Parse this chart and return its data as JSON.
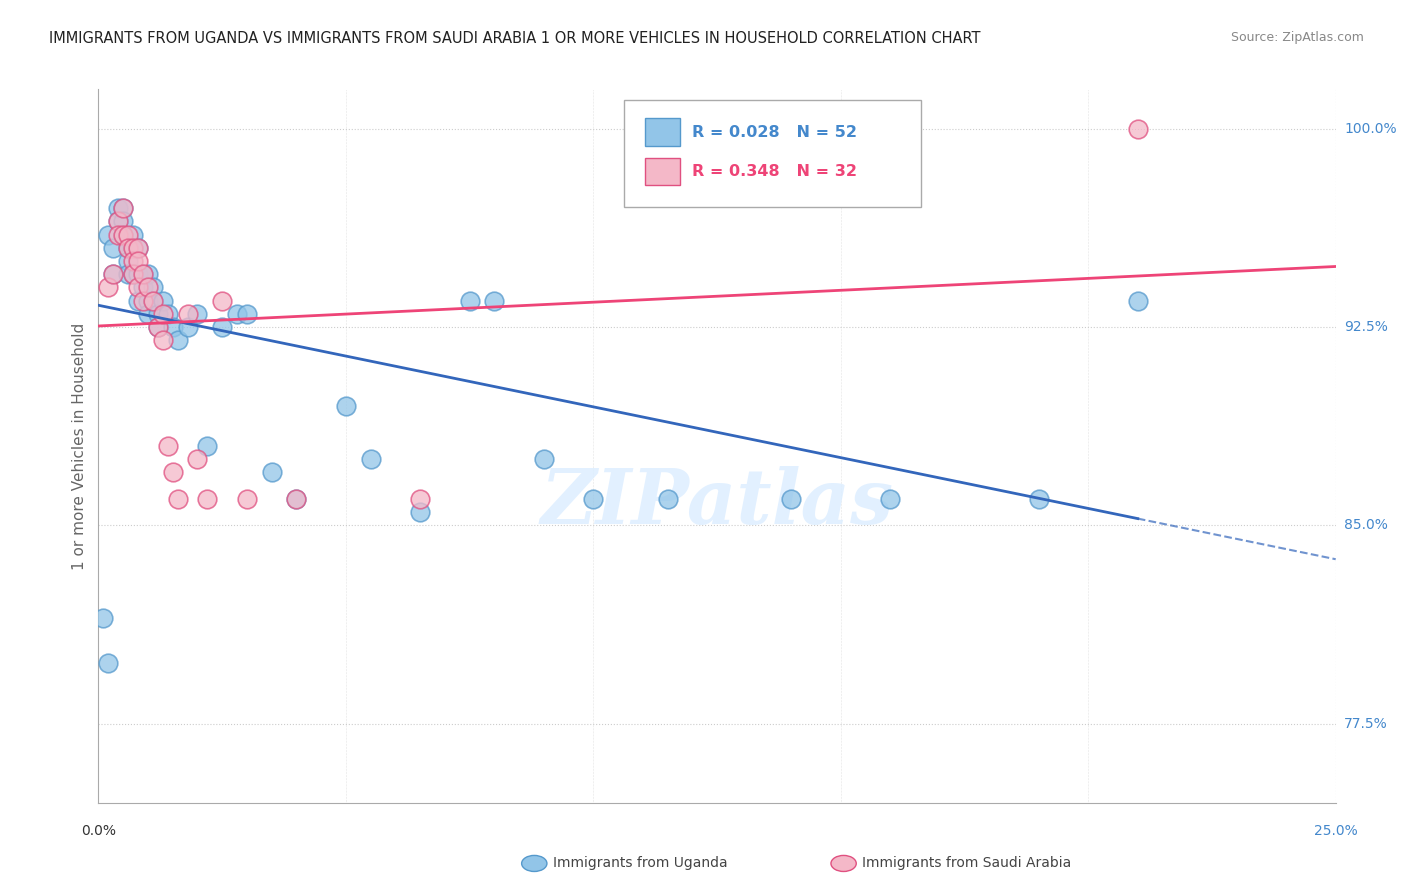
{
  "title": "IMMIGRANTS FROM UGANDA VS IMMIGRANTS FROM SAUDI ARABIA 1 OR MORE VEHICLES IN HOUSEHOLD CORRELATION CHART",
  "source": "Source: ZipAtlas.com",
  "ylabel_label": "1 or more Vehicles in Household",
  "legend_label_blue": "Immigrants from Uganda",
  "legend_label_pink": "Immigrants from Saudi Arabia",
  "R_blue": "R = 0.028",
  "N_blue": "N = 52",
  "R_pink": "R = 0.348",
  "N_pink": "N = 32",
  "xmin": 0.0,
  "xmax": 0.25,
  "ymin": 0.745,
  "ymax": 1.015,
  "yticks": [
    0.775,
    0.85,
    0.925,
    1.0
  ],
  "ytick_labels": [
    "77.5%",
    "85.0%",
    "92.5%",
    "100.0%"
  ],
  "blue_color": "#92c5e8",
  "pink_color": "#f4b8c8",
  "blue_edge_color": "#5599cc",
  "pink_edge_color": "#e05080",
  "blue_line_color": "#3366bb",
  "pink_line_color": "#ee4477",
  "grid_color": "#cccccc",
  "blue_scatter_x": [
    0.001,
    0.002,
    0.002,
    0.003,
    0.003,
    0.004,
    0.004,
    0.005,
    0.005,
    0.005,
    0.006,
    0.006,
    0.006,
    0.007,
    0.007,
    0.007,
    0.008,
    0.008,
    0.008,
    0.009,
    0.009,
    0.01,
    0.01,
    0.01,
    0.011,
    0.011,
    0.012,
    0.012,
    0.013,
    0.014,
    0.015,
    0.016,
    0.018,
    0.02,
    0.022,
    0.025,
    0.028,
    0.03,
    0.035,
    0.04,
    0.05,
    0.055,
    0.065,
    0.075,
    0.08,
    0.09,
    0.1,
    0.115,
    0.14,
    0.16,
    0.19,
    0.21
  ],
  "blue_scatter_y": [
    0.815,
    0.798,
    0.96,
    0.955,
    0.945,
    0.97,
    0.965,
    0.97,
    0.965,
    0.96,
    0.955,
    0.95,
    0.945,
    0.96,
    0.955,
    0.945,
    0.955,
    0.945,
    0.935,
    0.945,
    0.94,
    0.945,
    0.935,
    0.93,
    0.94,
    0.935,
    0.93,
    0.925,
    0.935,
    0.93,
    0.925,
    0.92,
    0.925,
    0.93,
    0.88,
    0.925,
    0.93,
    0.93,
    0.87,
    0.86,
    0.895,
    0.875,
    0.855,
    0.935,
    0.935,
    0.875,
    0.86,
    0.86,
    0.86,
    0.86,
    0.86,
    0.935
  ],
  "pink_scatter_x": [
    0.002,
    0.003,
    0.004,
    0.004,
    0.005,
    0.005,
    0.006,
    0.006,
    0.007,
    0.007,
    0.007,
    0.008,
    0.008,
    0.008,
    0.009,
    0.009,
    0.01,
    0.011,
    0.012,
    0.013,
    0.013,
    0.014,
    0.015,
    0.016,
    0.018,
    0.02,
    0.022,
    0.025,
    0.03,
    0.04,
    0.065,
    0.21
  ],
  "pink_scatter_y": [
    0.94,
    0.945,
    0.965,
    0.96,
    0.97,
    0.96,
    0.96,
    0.955,
    0.955,
    0.95,
    0.945,
    0.955,
    0.95,
    0.94,
    0.945,
    0.935,
    0.94,
    0.935,
    0.925,
    0.93,
    0.92,
    0.88,
    0.87,
    0.86,
    0.93,
    0.875,
    0.86,
    0.935,
    0.86,
    0.86,
    0.86,
    1.0
  ]
}
